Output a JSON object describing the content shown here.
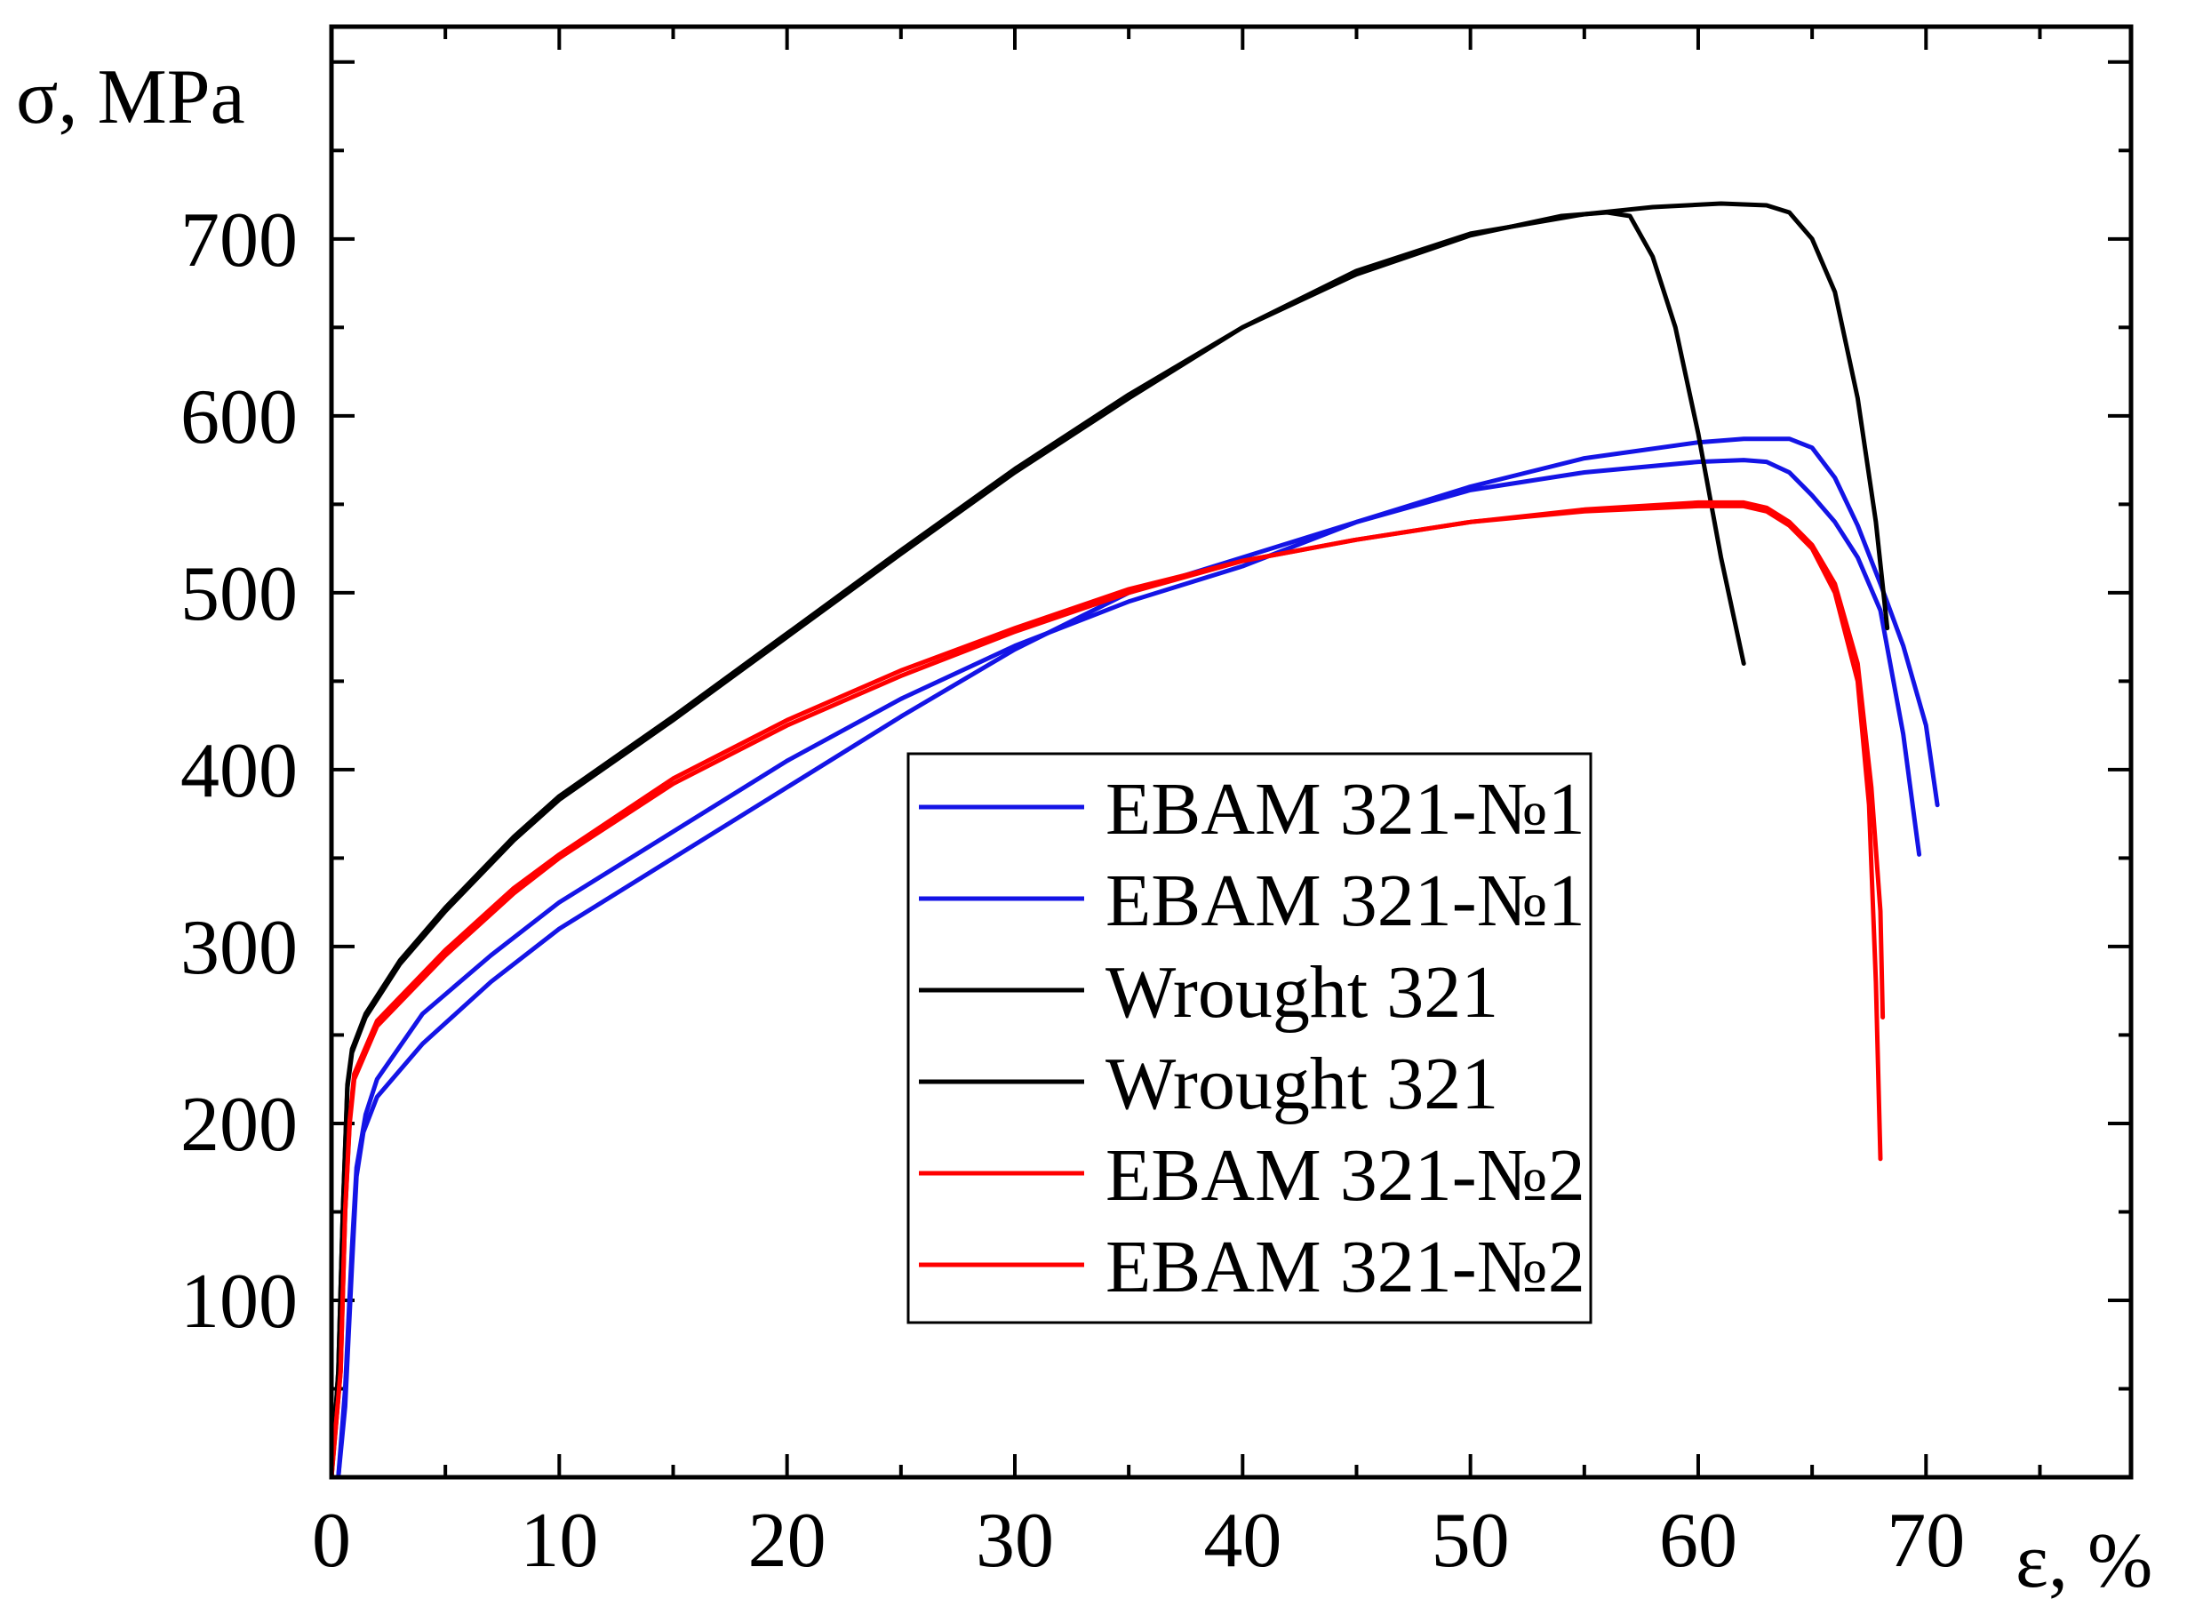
{
  "chart_data": {
    "type": "line",
    "title": "",
    "xlabel": "ε, %",
    "ylabel": "σ, MPa",
    "xlim": [
      0,
      79
    ],
    "ylim": [
      0,
      820
    ],
    "x_ticks": [
      0,
      10,
      20,
      30,
      40,
      50,
      60,
      70
    ],
    "x_tick_labels": [
      "0",
      "10",
      "20",
      "30",
      "40",
      "50",
      "60",
      "70"
    ],
    "y_ticks": [
      100,
      200,
      300,
      400,
      500,
      600,
      700
    ],
    "y_tick_labels": [
      "100",
      "200",
      "300",
      "400",
      "500",
      "600",
      "700"
    ],
    "grid": false,
    "legend_position": "center-right",
    "series": [
      {
        "name": "EBAM 321-№1",
        "color": "#1414e6",
        "points": [
          [
            0.3,
            0
          ],
          [
            0.6,
            40
          ],
          [
            0.9,
            120
          ],
          [
            1.1,
            170
          ],
          [
            1.4,
            195
          ],
          [
            2,
            215
          ],
          [
            4,
            245
          ],
          [
            7,
            280
          ],
          [
            10,
            310
          ],
          [
            15,
            350
          ],
          [
            20,
            390
          ],
          [
            25,
            430
          ],
          [
            30,
            468
          ],
          [
            35,
            500
          ],
          [
            40,
            520
          ],
          [
            45,
            540
          ],
          [
            50,
            558
          ],
          [
            55,
            568
          ],
          [
            60,
            574
          ],
          [
            62,
            575
          ],
          [
            63,
            574
          ],
          [
            64,
            568
          ],
          [
            65,
            555
          ],
          [
            66,
            540
          ],
          [
            67,
            520
          ],
          [
            68,
            490
          ],
          [
            69,
            420
          ],
          [
            69.7,
            352
          ]
        ]
      },
      {
        "name": "EBAM 321-№1",
        "color": "#1414e6",
        "points": [
          [
            0.3,
            0
          ],
          [
            0.6,
            50
          ],
          [
            0.9,
            130
          ],
          [
            1.1,
            175
          ],
          [
            1.5,
            205
          ],
          [
            2,
            225
          ],
          [
            4,
            262
          ],
          [
            7,
            295
          ],
          [
            10,
            325
          ],
          [
            15,
            365
          ],
          [
            20,
            405
          ],
          [
            25,
            440
          ],
          [
            30,
            470
          ],
          [
            35,
            495
          ],
          [
            40,
            515
          ],
          [
            45,
            540
          ],
          [
            50,
            560
          ],
          [
            55,
            576
          ],
          [
            60,
            585
          ],
          [
            62,
            587
          ],
          [
            64,
            587
          ],
          [
            65,
            582
          ],
          [
            66,
            565
          ],
          [
            67,
            538
          ],
          [
            68,
            505
          ],
          [
            69,
            470
          ],
          [
            70,
            425
          ],
          [
            70.5,
            380
          ]
        ]
      },
      {
        "name": "Wrought 321",
        "color": "#000000",
        "points": [
          [
            0,
            0
          ],
          [
            0.3,
            60
          ],
          [
            0.5,
            150
          ],
          [
            0.7,
            220
          ],
          [
            0.9,
            240
          ],
          [
            1.5,
            260
          ],
          [
            3,
            290
          ],
          [
            5,
            320
          ],
          [
            8,
            360
          ],
          [
            10,
            383
          ],
          [
            15,
            428
          ],
          [
            20,
            475
          ],
          [
            25,
            522
          ],
          [
            30,
            568
          ],
          [
            35,
            610
          ],
          [
            40,
            650
          ],
          [
            45,
            680
          ],
          [
            50,
            702
          ],
          [
            54,
            713
          ],
          [
            56,
            715
          ],
          [
            57,
            713
          ],
          [
            58,
            690
          ],
          [
            59,
            650
          ],
          [
            60,
            590
          ],
          [
            61,
            520
          ],
          [
            62,
            460
          ]
        ]
      },
      {
        "name": "Wrought 321",
        "color": "#000000",
        "points": [
          [
            0,
            0
          ],
          [
            0.3,
            60
          ],
          [
            0.5,
            150
          ],
          [
            0.7,
            222
          ],
          [
            0.9,
            242
          ],
          [
            1.5,
            262
          ],
          [
            3,
            292
          ],
          [
            5,
            322
          ],
          [
            8,
            362
          ],
          [
            10,
            385
          ],
          [
            15,
            430
          ],
          [
            20,
            477
          ],
          [
            25,
            524
          ],
          [
            30,
            570
          ],
          [
            35,
            612
          ],
          [
            40,
            650
          ],
          [
            45,
            682
          ],
          [
            50,
            703
          ],
          [
            55,
            714
          ],
          [
            58,
            718
          ],
          [
            61,
            720
          ],
          [
            63,
            719
          ],
          [
            64,
            715
          ],
          [
            65,
            700
          ],
          [
            66,
            670
          ],
          [
            67,
            610
          ],
          [
            67.8,
            540
          ],
          [
            68.3,
            480
          ]
        ]
      },
      {
        "name": "EBAM 321-№2",
        "color": "#ff0000",
        "points": [
          [
            0,
            0
          ],
          [
            0.4,
            60
          ],
          [
            0.6,
            150
          ],
          [
            0.8,
            200
          ],
          [
            1,
            225
          ],
          [
            2,
            255
          ],
          [
            5,
            295
          ],
          [
            8,
            330
          ],
          [
            10,
            350
          ],
          [
            15,
            392
          ],
          [
            20,
            425
          ],
          [
            25,
            453
          ],
          [
            30,
            478
          ],
          [
            35,
            500
          ],
          [
            40,
            518
          ],
          [
            45,
            530
          ],
          [
            50,
            540
          ],
          [
            55,
            546
          ],
          [
            60,
            549
          ],
          [
            62,
            549
          ],
          [
            63,
            546
          ],
          [
            64,
            538
          ],
          [
            65,
            525
          ],
          [
            66,
            500
          ],
          [
            67,
            450
          ],
          [
            67.5,
            380
          ],
          [
            67.8,
            280
          ],
          [
            68,
            180
          ]
        ]
      },
      {
        "name": "EBAM 321-№2",
        "color": "#ff0000",
        "points": [
          [
            0,
            0
          ],
          [
            0.4,
            60
          ],
          [
            0.6,
            150
          ],
          [
            0.8,
            202
          ],
          [
            1,
            228
          ],
          [
            2,
            258
          ],
          [
            5,
            298
          ],
          [
            8,
            333
          ],
          [
            10,
            352
          ],
          [
            15,
            395
          ],
          [
            20,
            428
          ],
          [
            25,
            456
          ],
          [
            30,
            480
          ],
          [
            35,
            502
          ],
          [
            40,
            518
          ],
          [
            45,
            530
          ],
          [
            50,
            540
          ],
          [
            55,
            547
          ],
          [
            60,
            551
          ],
          [
            62,
            551
          ],
          [
            63,
            548
          ],
          [
            64,
            540
          ],
          [
            65,
            527
          ],
          [
            66,
            505
          ],
          [
            67,
            460
          ],
          [
            67.6,
            390
          ],
          [
            68,
            320
          ],
          [
            68.1,
            260
          ]
        ]
      }
    ]
  }
}
